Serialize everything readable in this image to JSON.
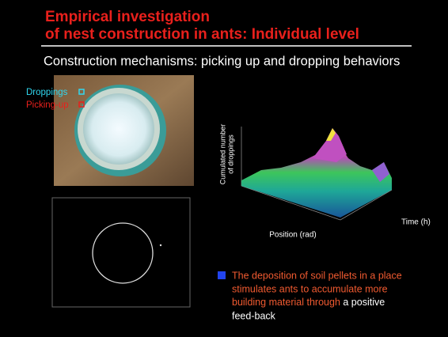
{
  "header": {
    "title": [
      "Empirical investigation",
      "of nest construction in ants: Individual level"
    ],
    "subtitle": "Construction mechanisms: picking up and dropping behaviors"
  },
  "photo": {
    "legend": [
      "Droppings",
      "Picking-up"
    ]
  },
  "surface_plot": {
    "z_label": [
      "Cumulated number",
      "of droppings"
    ],
    "x_label": "Position (rad)",
    "y_label": "Time (h)"
  },
  "bullet": {
    "highlight": [
      "The deposition of soil pellets in a place",
      "stimulates ants to accumulate more",
      "building material through"
    ],
    "rest": [
      "a positive",
      "feed-back"
    ]
  }
}
